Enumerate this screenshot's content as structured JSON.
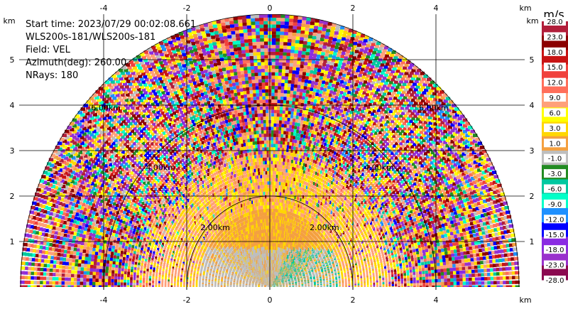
{
  "chart_data": {
    "type": "heatmap",
    "subtype": "radar-ppi-sector",
    "info_lines": [
      "Start time: 2023/07/29 00:02:08.661",
      "WLS200s-181/WLS200s-181",
      "Field: VEL",
      "Azimuth(deg): 260.00",
      "NRays: 180"
    ],
    "x_unit": "km",
    "y_unit": "km",
    "xlim": [
      -6.0,
      6.0
    ],
    "ylim": [
      0,
      6.0
    ],
    "x_ticks": [
      -4,
      -2,
      0,
      2,
      4
    ],
    "y_ticks": [
      1,
      2,
      3,
      4,
      5
    ],
    "grid": true,
    "range_rings": [
      {
        "r": 2,
        "label": "2.00km"
      },
      {
        "r": 4,
        "label": "4.00km"
      },
      {
        "r": 6,
        "label": "6.00km"
      }
    ],
    "max_range_km": 6.0,
    "colorbar": {
      "unit": "m/s",
      "labels": [
        "28.0",
        "23.0",
        "18.0",
        "15.0",
        "12.0",
        "9.0",
        "6.0",
        "3.0",
        "1.0",
        "-1.0",
        "-3.0",
        "-6.0",
        "-9.0",
        "-12.0",
        "-15.0",
        "-18.0",
        "-23.0",
        "-28.0"
      ],
      "colors": [
        "#b11e3a",
        "#8b0000",
        "#c81414",
        "#f0413c",
        "#ff6e5a",
        "#ffa07a",
        "#ffff00",
        "#ffd700",
        "#f4a040",
        "#bebebe",
        "#228b22",
        "#00c8a0",
        "#00ffc8",
        "#1e90ff",
        "#0000ff",
        "#8a2be2",
        "#9932cc",
        "#8b0a50"
      ]
    }
  }
}
